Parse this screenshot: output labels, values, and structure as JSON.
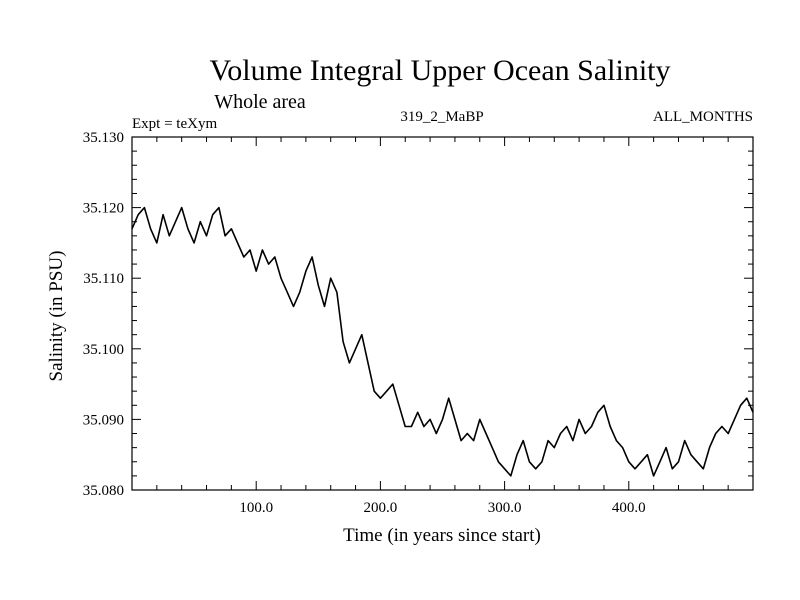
{
  "chart_data": {
    "type": "line",
    "title": "Volume Integral Upper Ocean Salinity",
    "subtitle": "Whole area",
    "experiment_label": "Expt = teXym",
    "run_label": "319_2_MaBP",
    "months_label": "ALL_MONTHS",
    "xlabel": "Time (in years since start)",
    "ylabel": "Salinity (in PSU)",
    "xlim": [
      0,
      500
    ],
    "ylim": [
      35.08,
      35.13
    ],
    "x_ticks": [
      100,
      200,
      300,
      400
    ],
    "x_tick_labels": [
      "100.0",
      "200.0",
      "300.0",
      "400.0"
    ],
    "y_ticks": [
      35.08,
      35.09,
      35.1,
      35.11,
      35.12,
      35.13
    ],
    "y_tick_labels": [
      "35.080",
      "35.090",
      "35.100",
      "35.110",
      "35.120",
      "35.130"
    ],
    "grid": false,
    "line_color": "#000000",
    "series": [
      {
        "x": [
          0,
          5,
          10,
          15,
          20,
          25,
          30,
          35,
          40,
          45,
          50,
          55,
          60,
          65,
          70,
          75,
          80,
          85,
          90,
          95,
          100,
          105,
          110,
          115,
          120,
          125,
          130,
          135,
          140,
          145,
          150,
          155,
          160,
          165,
          170,
          175,
          180,
          185,
          190,
          195,
          200,
          205,
          210,
          215,
          220,
          225,
          230,
          235,
          240,
          245,
          250,
          255,
          260,
          265,
          270,
          275,
          280,
          285,
          290,
          295,
          300,
          305,
          310,
          315,
          320,
          325,
          330,
          335,
          340,
          345,
          350,
          355,
          360,
          365,
          370,
          375,
          380,
          385,
          390,
          395,
          400,
          405,
          410,
          415,
          420,
          425,
          430,
          435,
          440,
          445,
          450,
          455,
          460,
          465,
          470,
          475,
          480,
          485,
          490,
          495,
          500
        ],
        "values": [
          35.117,
          35.119,
          35.12,
          35.117,
          35.115,
          35.119,
          35.116,
          35.118,
          35.12,
          35.117,
          35.115,
          35.118,
          35.116,
          35.119,
          35.12,
          35.116,
          35.117,
          35.115,
          35.113,
          35.114,
          35.111,
          35.114,
          35.112,
          35.113,
          35.11,
          35.108,
          35.106,
          35.108,
          35.111,
          35.113,
          35.109,
          35.106,
          35.11,
          35.108,
          35.101,
          35.098,
          35.1,
          35.102,
          35.098,
          35.094,
          35.093,
          35.094,
          35.095,
          35.092,
          35.089,
          35.089,
          35.091,
          35.089,
          35.09,
          35.088,
          35.09,
          35.093,
          35.09,
          35.087,
          35.088,
          35.087,
          35.09,
          35.088,
          35.086,
          35.084,
          35.083,
          35.082,
          35.085,
          35.087,
          35.084,
          35.083,
          35.084,
          35.087,
          35.086,
          35.088,
          35.089,
          35.087,
          35.09,
          35.088,
          35.089,
          35.091,
          35.092,
          35.089,
          35.087,
          35.086,
          35.084,
          35.083,
          35.084,
          35.085,
          35.082,
          35.084,
          35.086,
          35.083,
          35.084,
          35.087,
          35.085,
          35.084,
          35.083,
          35.086,
          35.088,
          35.089,
          35.088,
          35.09,
          35.092,
          35.093,
          35.091
        ]
      }
    ]
  }
}
